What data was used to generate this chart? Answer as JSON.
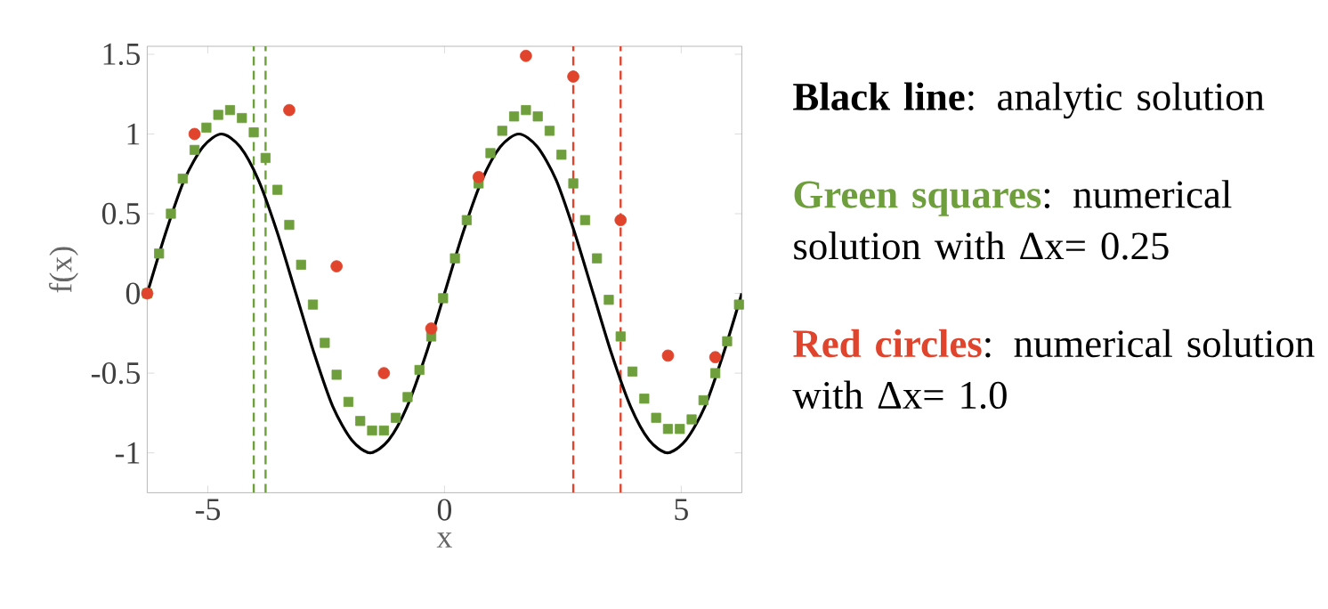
{
  "chart_data": {
    "type": "line",
    "xlabel": "x",
    "ylabel": "f(x)",
    "xlim": [
      -6.28,
      6.28
    ],
    "ylim": [
      -1.25,
      1.55
    ],
    "xticks": [
      -5,
      0,
      5
    ],
    "yticks": [
      -1,
      -0.5,
      0,
      0.5,
      1,
      1.5
    ],
    "grid": false,
    "series": [
      {
        "color": "#000000",
        "x": [
          -6.28,
          -5.89,
          -5.5,
          -5.1,
          -4.71,
          -4.32,
          -3.93,
          -3.53,
          -3.14,
          -2.75,
          -2.36,
          -1.96,
          -1.57,
          -1.18,
          -0.79,
          -0.39,
          0,
          0.39,
          0.79,
          1.18,
          1.57,
          1.96,
          2.36,
          2.75,
          3.14,
          3.53,
          3.93,
          4.32,
          4.71,
          5.1,
          5.5,
          5.89,
          6.28
        ],
        "values": [
          0,
          0.38,
          0.71,
          0.92,
          1,
          0.92,
          0.71,
          0.38,
          0,
          -0.38,
          -0.71,
          -0.92,
          -1,
          -0.92,
          -0.71,
          -0.38,
          0,
          0.38,
          0.71,
          0.92,
          1,
          0.92,
          0.71,
          0.38,
          0,
          -0.38,
          -0.71,
          -0.92,
          -1,
          -0.92,
          -0.71,
          -0.38,
          0
        ]
      },
      {
        "type": "scatter",
        "marker": "square",
        "color": "#6e9f3c",
        "x": [
          -6.28,
          -6.03,
          -5.78,
          -5.53,
          -5.28,
          -5.03,
          -4.78,
          -4.53,
          -4.28,
          -4.03,
          -3.78,
          -3.53,
          -3.28,
          -3.03,
          -2.78,
          -2.53,
          -2.28,
          -2.03,
          -1.78,
          -1.53,
          -1.28,
          -1.03,
          -0.78,
          -0.53,
          -0.28,
          -0.03,
          0.22,
          0.47,
          0.72,
          0.97,
          1.22,
          1.47,
          1.72,
          1.97,
          2.22,
          2.47,
          2.72,
          2.97,
          3.22,
          3.47,
          3.72,
          3.97,
          4.22,
          4.47,
          4.72,
          4.97,
          5.22,
          5.47,
          5.72,
          5.97,
          6.22
        ],
        "values": [
          0,
          0.25,
          0.5,
          0.72,
          0.9,
          1.04,
          1.12,
          1.15,
          1.1,
          1.01,
          0.85,
          0.65,
          0.43,
          0.18,
          -0.07,
          -0.31,
          -0.51,
          -0.68,
          -0.8,
          -0.86,
          -0.86,
          -0.78,
          -0.65,
          -0.48,
          -0.27,
          -0.03,
          0.22,
          0.46,
          0.69,
          0.88,
          1.02,
          1.11,
          1.15,
          1.11,
          1.02,
          0.87,
          0.69,
          0.46,
          0.22,
          -0.04,
          -0.27,
          -0.49,
          -0.66,
          -0.78,
          -0.85,
          -0.85,
          -0.79,
          -0.67,
          -0.5,
          -0.3,
          -0.07
        ]
      },
      {
        "type": "scatter",
        "marker": "circle",
        "color": "#e0442c",
        "x": [
          -6.28,
          -5.28,
          -4.28,
          -3.28,
          -2.28,
          -1.28,
          -0.28,
          0.72,
          1.72,
          2.72,
          3.72,
          4.72,
          5.72
        ],
        "values": [
          0,
          1.0,
          null,
          1.15,
          0.17,
          -0.5,
          -0.22,
          0.73,
          1.49,
          1.36,
          0.46,
          -0.39,
          -0.4
        ]
      }
    ],
    "ref_lines": [
      {
        "axis": "x",
        "value": -4.03,
        "color": "#6e9f3c",
        "line_style": "dashed"
      },
      {
        "axis": "x",
        "value": -3.78,
        "color": "#6e9f3c",
        "line_style": "dashed"
      },
      {
        "axis": "x",
        "value": 2.72,
        "color": "#e0442c",
        "line_style": "dashed"
      },
      {
        "axis": "x",
        "value": 3.72,
        "color": "#e0442c",
        "line_style": "dashed"
      }
    ],
    "annotations": [
      "Black line",
      ": analytic solution",
      "Green squares",
      ": numerical solution with  Δx= 0.25",
      "Red circles",
      ": numerical solution with  Δx= 1.0"
    ]
  }
}
